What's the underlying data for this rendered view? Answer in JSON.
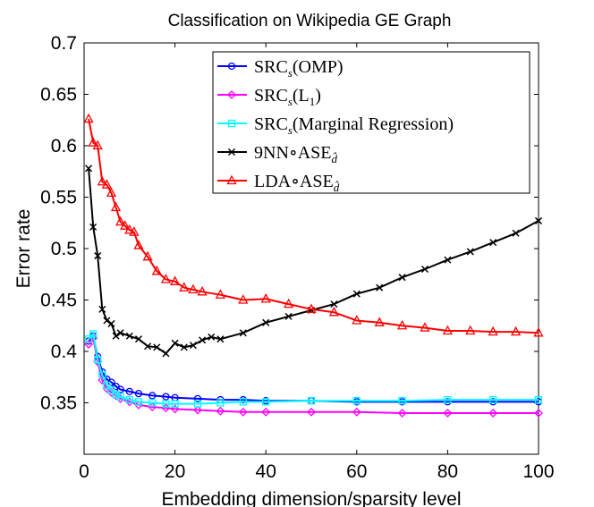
{
  "chart_data": {
    "type": "line",
    "title": "Classification on Wikipedia GE Graph",
    "xlabel": "Embedding dimension/sparsity level",
    "ylabel": "Error rate",
    "xlim": [
      0,
      100
    ],
    "ylim": [
      0.3,
      0.7
    ],
    "xticks": [
      0,
      20,
      40,
      60,
      80,
      100
    ],
    "yticks": [
      0.35,
      0.4,
      0.45,
      0.5,
      0.55,
      0.6,
      0.65,
      0.7
    ],
    "grid": false,
    "legend_position": "top-right",
    "series": [
      {
        "name": "SRC_s(OMP)",
        "legend": {
          "base": "SRC",
          "sub": "s",
          "rest": "(OMP)"
        },
        "color": "#0000ff",
        "marker": "circle",
        "x": [
          1,
          2,
          3,
          4,
          5,
          6,
          7,
          8,
          10,
          12,
          15,
          18,
          20,
          25,
          30,
          35,
          40,
          50,
          60,
          70,
          80,
          90,
          100
        ],
        "y": [
          0.41,
          0.415,
          0.395,
          0.38,
          0.373,
          0.37,
          0.366,
          0.363,
          0.361,
          0.359,
          0.357,
          0.356,
          0.355,
          0.354,
          0.353,
          0.353,
          0.352,
          0.352,
          0.351,
          0.351,
          0.351,
          0.351,
          0.351
        ]
      },
      {
        "name": "SRC_s(L_1)",
        "legend": {
          "base": "SRC",
          "sub": "s",
          "rest": "(L",
          "sub2": "1",
          "rest2": ")"
        },
        "color": "#ff00ff",
        "marker": "diamond",
        "x": [
          1,
          2,
          3,
          4,
          5,
          6,
          7,
          8,
          10,
          12,
          15,
          18,
          20,
          25,
          30,
          35,
          40,
          50,
          60,
          70,
          80,
          90,
          100
        ],
        "y": [
          0.407,
          0.413,
          0.39,
          0.372,
          0.364,
          0.36,
          0.357,
          0.354,
          0.351,
          0.348,
          0.346,
          0.345,
          0.344,
          0.343,
          0.342,
          0.341,
          0.341,
          0.341,
          0.341,
          0.34,
          0.34,
          0.34,
          0.34
        ]
      },
      {
        "name": "SRC_s(Marginal Regression)",
        "legend": {
          "base": "SRC",
          "sub": "s",
          "rest": "(Marginal Regression)"
        },
        "color": "#00ffff",
        "marker": "square",
        "x": [
          1,
          2,
          3,
          4,
          5,
          6,
          7,
          8,
          10,
          12,
          15,
          18,
          20,
          25,
          30,
          35,
          40,
          50,
          60,
          70,
          80,
          90,
          100
        ],
        "y": [
          0.412,
          0.417,
          0.392,
          0.377,
          0.367,
          0.362,
          0.358,
          0.356,
          0.353,
          0.351,
          0.35,
          0.349,
          0.349,
          0.349,
          0.35,
          0.351,
          0.351,
          0.352,
          0.352,
          0.352,
          0.353,
          0.353,
          0.353
        ]
      },
      {
        "name": "9NN∘ASE_d̂",
        "legend": {
          "base": "9NN∘ASE",
          "sub": "d̂"
        },
        "color": "#000000",
        "marker": "x",
        "x": [
          1,
          2,
          3,
          4,
          5,
          6,
          7,
          8,
          10,
          12,
          14,
          16,
          18,
          20,
          22,
          24,
          26,
          28,
          30,
          35,
          40,
          45,
          50,
          55,
          60,
          65,
          70,
          75,
          80,
          85,
          90,
          95,
          100
        ],
        "y": [
          0.578,
          0.521,
          0.493,
          0.441,
          0.43,
          0.427,
          0.415,
          0.418,
          0.415,
          0.412,
          0.405,
          0.404,
          0.398,
          0.408,
          0.404,
          0.406,
          0.411,
          0.414,
          0.412,
          0.418,
          0.428,
          0.434,
          0.44,
          0.446,
          0.456,
          0.462,
          0.472,
          0.48,
          0.489,
          0.497,
          0.506,
          0.515,
          0.527
        ]
      },
      {
        "name": "LDA∘ASE_d̂",
        "legend": {
          "base": "LDA∘ASE",
          "sub": "d̂"
        },
        "color": "#ff0000",
        "marker": "triangle",
        "x": [
          1,
          2,
          3,
          4,
          5,
          6,
          7,
          8,
          9,
          10,
          11,
          12,
          14,
          16,
          18,
          20,
          22,
          24,
          26,
          30,
          35,
          40,
          45,
          50,
          55,
          60,
          65,
          70,
          75,
          80,
          85,
          90,
          95,
          100
        ],
        "y": [
          0.626,
          0.603,
          0.6,
          0.565,
          0.562,
          0.554,
          0.54,
          0.526,
          0.522,
          0.518,
          0.516,
          0.503,
          0.492,
          0.478,
          0.47,
          0.468,
          0.462,
          0.46,
          0.458,
          0.455,
          0.45,
          0.451,
          0.446,
          0.441,
          0.438,
          0.43,
          0.428,
          0.425,
          0.423,
          0.42,
          0.42,
          0.419,
          0.419,
          0.418
        ]
      }
    ]
  }
}
